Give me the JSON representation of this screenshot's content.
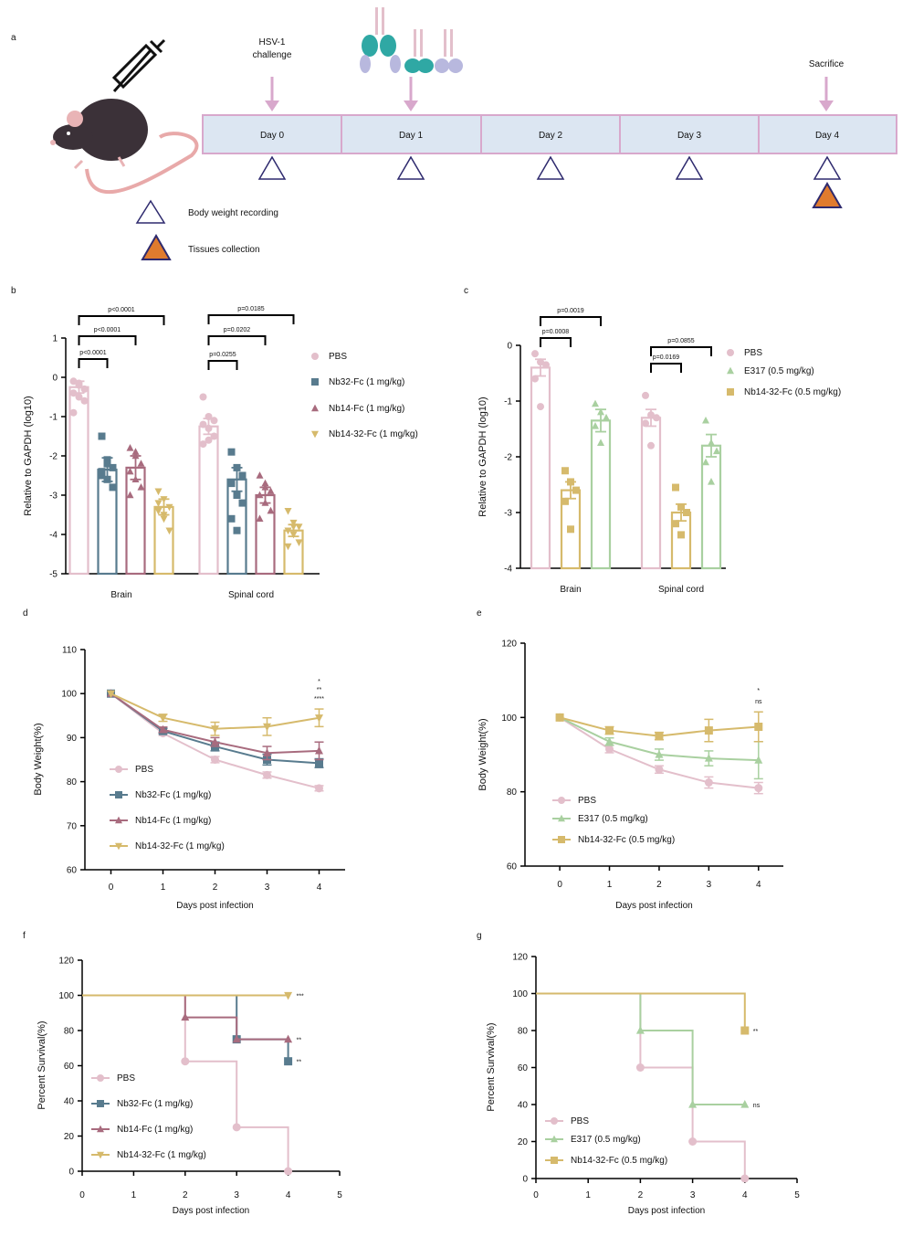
{
  "diagram": {
    "panel": "a",
    "challenge_label": [
      "HSV-1",
      "challenge"
    ],
    "sacrifice_label": "Sacrifice",
    "days": [
      "Day 0",
      "Day 1",
      "Day 2",
      "Day 3",
      "Day 4"
    ],
    "legend": [
      "Body weight recording",
      "Tissues collection"
    ]
  },
  "chart_data": [
    {
      "panel": "b",
      "type": "bar",
      "ylabel": "Relative to GAPDH (log10)",
      "categories": [
        "Brain",
        "Spinal cord"
      ],
      "ylim": [
        -5,
        1
      ],
      "yticks": [
        -5,
        -4,
        -3,
        -2,
        -1,
        0,
        1
      ],
      "comparisons": [
        "p<0.0001",
        "p<0.0001",
        "p<0.0001",
        "p=0.0255",
        "p=0.0202",
        "p=0.0185"
      ],
      "series": [
        {
          "name": "PBS",
          "color": "#e3bfcb",
          "marker": "circle",
          "values": [
            -0.25,
            -1.25
          ],
          "errors": [
            0.15,
            0.2
          ],
          "points": [
            [
              -0.1,
              -0.2,
              -0.3,
              -0.4,
              -0.5,
              -0.6,
              -0.9,
              -0.15
            ],
            [
              -0.5,
              -1.0,
              -1.1,
              -1.2,
              -1.3,
              -1.5,
              -1.7,
              -1.6
            ]
          ]
        },
        {
          "name": "Nb32-Fc (1 mg/kg)",
          "color": "#587b8e",
          "marker": "square",
          "values": [
            -2.35,
            -2.6
          ],
          "errors": [
            0.3,
            0.3
          ],
          "points": [
            [
              -1.5,
              -2.1,
              -2.3,
              -2.5,
              -2.6,
              -2.8,
              -2.4,
              -2.2
            ],
            [
              -1.9,
              -2.3,
              -2.5,
              -2.7,
              -3.0,
              -3.2,
              -3.6,
              -3.9
            ]
          ]
        },
        {
          "name": "Nb14-Fc (1 mg/kg)",
          "color": "#a86b7e",
          "marker": "triangle",
          "values": [
            -2.3,
            -3.0
          ],
          "errors": [
            0.3,
            0.2
          ],
          "points": [
            [
              -1.8,
              -2.0,
              -2.2,
              -2.4,
              -2.6,
              -2.8,
              -3.0,
              -1.9
            ],
            [
              -2.5,
              -2.8,
              -2.9,
              -3.0,
              -3.2,
              -3.4,
              -3.6,
              -2.7
            ]
          ]
        },
        {
          "name": "Nb14-32-Fc (1 mg/kg)",
          "color": "#d6ba6c",
          "marker": "triangle-down",
          "values": [
            -3.3,
            -3.9
          ],
          "errors": [
            0.2,
            0.15
          ],
          "points": [
            [
              -2.9,
              -3.1,
              -3.3,
              -3.4,
              -3.6,
              -3.9,
              -3.2,
              -3.5
            ],
            [
              -3.4,
              -3.7,
              -3.8,
              -3.9,
              -4.0,
              -4.2,
              -4.3,
              -3.8
            ]
          ]
        }
      ]
    },
    {
      "panel": "c",
      "type": "bar",
      "ylabel": "Relative to GAPDH (log10)",
      "categories": [
        "Brain",
        "Spinal cord"
      ],
      "ylim": [
        -4,
        0
      ],
      "yticks": [
        -4,
        -3,
        -2,
        -1,
        0
      ],
      "comparisons": [
        "p=0.0008",
        "p=0.0019",
        "p=0.0169",
        "p=0.0855"
      ],
      "series": [
        {
          "name": "PBS",
          "color": "#e3bfcb",
          "marker": "circle",
          "values": [
            -0.4,
            -1.3
          ],
          "errors": [
            0.15,
            0.15
          ],
          "points": [
            [
              -0.15,
              -0.3,
              -0.35,
              -0.6,
              -1.1
            ],
            [
              -0.9,
              -1.25,
              -1.3,
              -1.4,
              -1.8
            ]
          ]
        },
        {
          "name": "E317 (0.5 mg/kg)",
          "color": "#a9d0a0",
          "marker": "triangle",
          "values": [
            -1.35,
            -1.8
          ],
          "errors": [
            0.2,
            0.2
          ],
          "points": [
            [
              -1.05,
              -1.2,
              -1.3,
              -1.45,
              -1.75
            ],
            [
              -1.35,
              -1.75,
              -1.9,
              -2.1,
              -2.45
            ]
          ]
        },
        {
          "name": "Nb14-32-Fc (0.5 mg/kg)",
          "color": "#d6ba6c",
          "marker": "square",
          "values": [
            -2.6,
            -3.0
          ],
          "errors": [
            0.15,
            0.15
          ],
          "points": [
            [
              -2.25,
              -2.45,
              -2.6,
              -2.8,
              -3.3
            ],
            [
              -2.55,
              -2.9,
              -3.0,
              -3.2,
              -3.4
            ]
          ]
        }
      ]
    },
    {
      "panel": "d",
      "type": "line",
      "ylabel": "Body Weight(%)",
      "xlabel": "Days post infection",
      "x": [
        0,
        1,
        2,
        3,
        4
      ],
      "xlim": [
        -0.5,
        4.5
      ],
      "xticks": [
        0,
        1,
        2,
        3,
        4
      ],
      "ylim": [
        60,
        110
      ],
      "yticks": [
        60,
        70,
        80,
        90,
        100,
        110
      ],
      "annotations": [
        {
          "text": "*",
          "color": "#a86b7e"
        },
        {
          "text": "**",
          "color": "#587b8e"
        },
        {
          "text": "****",
          "color": "#d6ba6c"
        }
      ],
      "series": [
        {
          "name": "PBS",
          "color": "#e3bfcb",
          "marker": "circle",
          "values": [
            100,
            91,
            85,
            81.5,
            78.5
          ],
          "errors": [
            0,
            0.5,
            0.7,
            0.7,
            0.6
          ]
        },
        {
          "name": "Nb32-Fc (1 mg/kg)",
          "color": "#587b8e",
          "marker": "square",
          "values": [
            100,
            91.5,
            88,
            85,
            84.2
          ],
          "errors": [
            0,
            0.6,
            1,
            1.2,
            1
          ]
        },
        {
          "name": "Nb14-Fc (1 mg/kg)",
          "color": "#a86b7e",
          "marker": "triangle",
          "values": [
            100,
            91.8,
            89,
            86.5,
            87
          ],
          "errors": [
            0,
            0.6,
            1,
            1.5,
            2
          ]
        },
        {
          "name": "Nb14-32-Fc (1 mg/kg)",
          "color": "#d6ba6c",
          "marker": "triangle-down",
          "values": [
            100,
            94.5,
            92,
            92.5,
            94.5
          ],
          "errors": [
            0,
            0.8,
            1.5,
            2,
            2
          ]
        }
      ]
    },
    {
      "panel": "e",
      "type": "line",
      "ylabel": "Body Weight(%)",
      "xlabel": "Days post infection",
      "x": [
        0,
        1,
        2,
        3,
        4
      ],
      "xlim": [
        -0.7,
        4.5
      ],
      "xticks": [
        0,
        1,
        2,
        3,
        4
      ],
      "ylim": [
        60,
        120
      ],
      "yticks": [
        60,
        80,
        100,
        120
      ],
      "annotations": [
        {
          "text": "*",
          "color": "#d6ba6c"
        },
        {
          "text": "ns",
          "color": "#a9d0a0"
        }
      ],
      "series": [
        {
          "name": "PBS",
          "color": "#e3bfcb",
          "marker": "circle",
          "values": [
            100,
            91.5,
            86,
            82.5,
            81
          ],
          "errors": [
            0,
            1,
            1,
            1.5,
            1.5
          ]
        },
        {
          "name": "E317 (0.5 mg/kg)",
          "color": "#a9d0a0",
          "marker": "triangle",
          "values": [
            100,
            93.5,
            90,
            89,
            88.5
          ],
          "errors": [
            0,
            1,
            1.5,
            2,
            5
          ]
        },
        {
          "name": "Nb14-32-Fc (0.5 mg/kg)",
          "color": "#d6ba6c",
          "marker": "square",
          "values": [
            100,
            96.5,
            95,
            96.5,
            97.5
          ],
          "errors": [
            0,
            1,
            1,
            3,
            4
          ]
        }
      ]
    },
    {
      "panel": "f",
      "type": "step",
      "ylabel": "Percent Survival(%)",
      "xlabel": "Days post infection",
      "xlim": [
        0,
        5
      ],
      "xticks": [
        0,
        1,
        2,
        3,
        4,
        5
      ],
      "ylim": [
        0,
        120
      ],
      "yticks": [
        0,
        20,
        40,
        60,
        80,
        100,
        120
      ],
      "series": [
        {
          "name": "PBS",
          "color": "#e3bfcb",
          "marker": "circle",
          "x": [
            0,
            2,
            3,
            4
          ],
          "values": [
            100,
            62.5,
            25,
            0
          ]
        },
        {
          "name": "Nb32-Fc (1 mg/kg)",
          "color": "#587b8e",
          "marker": "square",
          "x": [
            0,
            3,
            4
          ],
          "values": [
            100,
            75,
            62.5
          ],
          "label": "**"
        },
        {
          "name": "Nb14-Fc (1 mg/kg)",
          "color": "#a86b7e",
          "marker": "triangle",
          "x": [
            0,
            2,
            3,
            4
          ],
          "values": [
            100,
            87.5,
            75,
            75
          ],
          "label": "**"
        },
        {
          "name": "Nb14-32-Fc (1 mg/kg)",
          "color": "#d6ba6c",
          "marker": "triangle-down",
          "x": [
            0,
            4
          ],
          "values": [
            100,
            100
          ],
          "label": "***"
        }
      ]
    },
    {
      "panel": "g",
      "type": "step",
      "ylabel": "Percent Survival(%)",
      "xlabel": "Days post infection",
      "xlim": [
        0,
        5
      ],
      "xticks": [
        0,
        1,
        2,
        3,
        4,
        5
      ],
      "ylim": [
        0,
        120
      ],
      "yticks": [
        0,
        20,
        40,
        60,
        80,
        100,
        120
      ],
      "series": [
        {
          "name": "PBS",
          "color": "#e3bfcb",
          "marker": "circle",
          "x": [
            0,
            2,
            3,
            4
          ],
          "values": [
            100,
            60,
            20,
            0
          ]
        },
        {
          "name": "E317 (0.5 mg/kg)",
          "color": "#a9d0a0",
          "marker": "triangle",
          "x": [
            0,
            2,
            3,
            4
          ],
          "values": [
            100,
            80,
            40,
            40
          ],
          "label": "ns"
        },
        {
          "name": "Nb14-32-Fc (0.5 mg/kg)",
          "color": "#d6ba6c",
          "marker": "square",
          "x": [
            0,
            4
          ],
          "values": [
            100,
            80
          ],
          "label": "**"
        }
      ]
    }
  ]
}
